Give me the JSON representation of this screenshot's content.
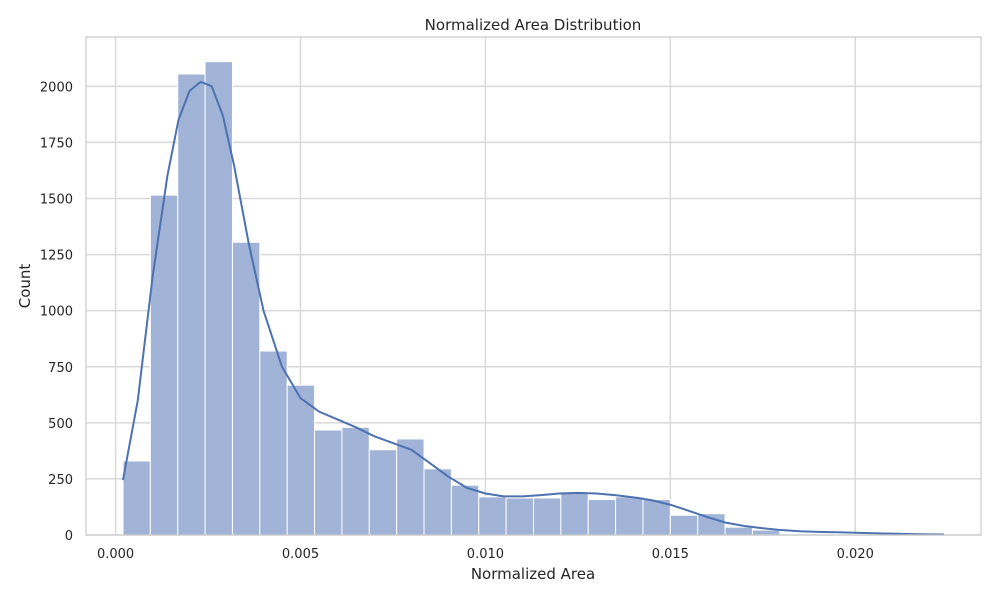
{
  "chart_data": {
    "type": "bar",
    "title": "Normalized Area Distribution",
    "xlabel": "Normalized Area",
    "ylabel": "Count",
    "xlim": [
      -0.0008,
      0.0234
    ],
    "ylim": [
      0,
      2220
    ],
    "xticks": [
      {
        "value": 0.0,
        "label": "0.000"
      },
      {
        "value": 0.005,
        "label": "0.005"
      },
      {
        "value": 0.01,
        "label": "0.010"
      },
      {
        "value": 0.015,
        "label": "0.015"
      },
      {
        "value": 0.02,
        "label": "0.020"
      }
    ],
    "yticks": [
      {
        "value": 0,
        "label": "0"
      },
      {
        "value": 250,
        "label": "250"
      },
      {
        "value": 500,
        "label": "500"
      },
      {
        "value": 750,
        "label": "750"
      },
      {
        "value": 1000,
        "label": "1000"
      },
      {
        "value": 1250,
        "label": "1250"
      },
      {
        "value": 1500,
        "label": "1500"
      },
      {
        "value": 1750,
        "label": "1750"
      },
      {
        "value": 2000,
        "label": "2000"
      }
    ],
    "grid": true,
    "bin_edges": [
      0.0002,
      0.00094,
      0.00168,
      0.00242,
      0.00316,
      0.0039,
      0.00464,
      0.00538,
      0.00612,
      0.00686,
      0.0076,
      0.00834,
      0.00908,
      0.00982,
      0.01056,
      0.0113,
      0.01204,
      0.01278,
      0.01352,
      0.01426,
      0.015,
      0.01574,
      0.01648,
      0.01722,
      0.01796,
      0.0187,
      0.01944,
      0.02018,
      0.02092,
      0.02166,
      0.0224
    ],
    "values": [
      330,
      1515,
      2055,
      2110,
      1305,
      820,
      668,
      468,
      480,
      380,
      428,
      295,
      222,
      170,
      165,
      165,
      185,
      158,
      170,
      158,
      88,
      95,
      35,
      22,
      5,
      5,
      3,
      2,
      1,
      4
    ],
    "kde": {
      "x": [
        0.0002,
        0.0006,
        0.001,
        0.0014,
        0.0017,
        0.002,
        0.0023,
        0.0026,
        0.0029,
        0.0032,
        0.0036,
        0.004,
        0.0045,
        0.005,
        0.0055,
        0.006,
        0.0065,
        0.007,
        0.0075,
        0.008,
        0.0085,
        0.009,
        0.0095,
        0.01,
        0.0105,
        0.011,
        0.0115,
        0.012,
        0.0125,
        0.013,
        0.0135,
        0.014,
        0.0145,
        0.015,
        0.0155,
        0.016,
        0.0165,
        0.017,
        0.0175,
        0.018,
        0.0185,
        0.019,
        0.0195,
        0.02,
        0.0205,
        0.021,
        0.0215,
        0.022,
        0.0224
      ],
      "y": [
        245,
        600,
        1150,
        1600,
        1850,
        1980,
        2020,
        2000,
        1870,
        1650,
        1300,
        1000,
        750,
        610,
        550,
        515,
        480,
        440,
        410,
        380,
        320,
        260,
        210,
        185,
        172,
        172,
        178,
        185,
        188,
        185,
        178,
        168,
        155,
        135,
        108,
        80,
        55,
        40,
        30,
        22,
        17,
        14,
        12,
        10,
        8,
        6,
        4,
        3,
        2
      ]
    },
    "colors": {
      "bar_fill": "#a1b3d6",
      "bar_stroke": "#ffffff",
      "line": "#4c72b0",
      "grid": "#d9d9d9",
      "frame": "#cccccc"
    }
  }
}
